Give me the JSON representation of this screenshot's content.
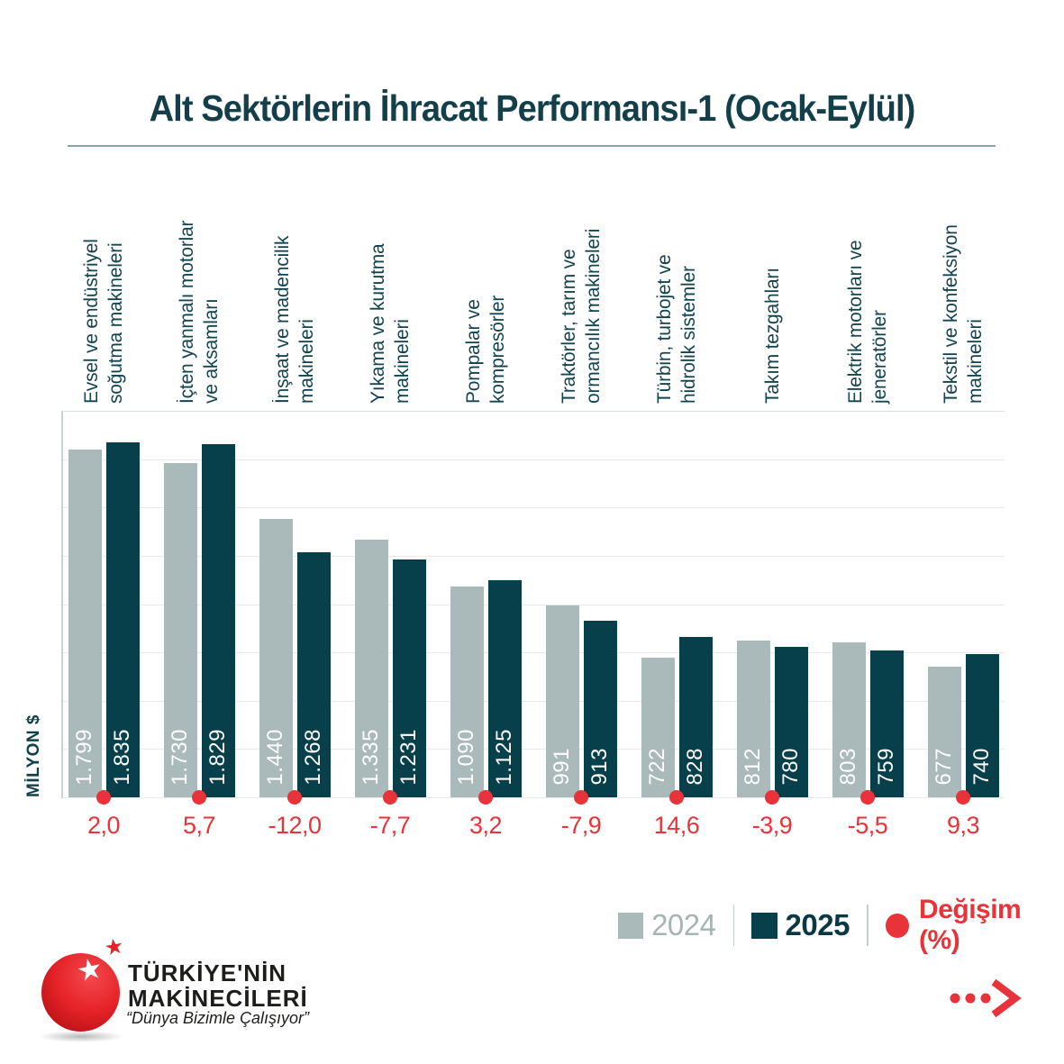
{
  "title": "Alt Sektörlerin İhracat Performansı-1 (Ocak-Eylül)",
  "y_axis_label": "MİLYON $",
  "legend": {
    "year1_label": "2024",
    "year2_label": "2025",
    "change_label": "Değişim (%)"
  },
  "colors": {
    "bar_2024": "#aab9b9",
    "bar_2025": "#073f4a",
    "accent_red": "#e8333a",
    "teal_text": "#123f49",
    "grid": "#e7ebeb"
  },
  "chart_data": {
    "type": "bar",
    "title": "Alt Sektörlerin İhracat Performansı-1 (Ocak-Eylül)",
    "xlabel": "",
    "ylabel": "MİLYON $",
    "ylim": [
      0,
      2000
    ],
    "grid_step": 250,
    "grid": "horizontal",
    "legend_position": "bottom-right",
    "categories": [
      "Evsel ve endüstriyel\nsoğutma makineleri",
      "İçten yanmalı motorlar\nve aksamları",
      "İnşaat ve madencilik\nmakineleri",
      "Yıkama ve kurutma\nmakineleri",
      "Pompalar ve\nkompresörler",
      "Traktörler, tarım ve\normancılık makineleri",
      "Türbin, turbojet ve\nhidrolik sistemler",
      "Takım tezgahları",
      "Elektrik motorları ve\njeneratörler",
      "Tekstil ve konfeksiyon\nmakineleri"
    ],
    "series": [
      {
        "name": "2024",
        "values": [
          1799,
          1730,
          1440,
          1335,
          1090,
          991,
          722,
          812,
          803,
          677
        ],
        "labels": [
          "1.799",
          "1.730",
          "1.440",
          "1.335",
          "1.090",
          "991",
          "722",
          "812",
          "803",
          "677"
        ]
      },
      {
        "name": "2025",
        "values": [
          1835,
          1829,
          1268,
          1231,
          1125,
          913,
          828,
          780,
          759,
          740
        ],
        "labels": [
          "1.835",
          "1.829",
          "1.268",
          "1.231",
          "1.125",
          "913",
          "828",
          "780",
          "759",
          "740"
        ]
      }
    ],
    "change_pct": [
      "2,0",
      "5,7",
      "-12,0",
      "-7,7",
      "3,2",
      "-7,9",
      "14,6",
      "-3,9",
      "-5,5",
      "9,3"
    ]
  },
  "logo": {
    "name_line1": "TÜRKİYE'NİN",
    "name_line2": "MAKİNECİLERİ",
    "slogan": "“Dünya Bizimle Çalışıyor”"
  }
}
